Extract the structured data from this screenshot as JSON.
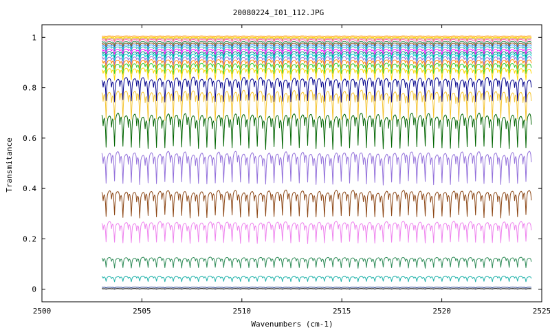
{
  "chart_data": {
    "type": "line",
    "title": "20080224_I01_112.JPG",
    "xlabel": "Wavenumbers (cm-1)",
    "ylabel": "Transmitance",
    "xlim": [
      2500,
      2525
    ],
    "ylim": [
      -0.05,
      1.05
    ],
    "x_ticks": [
      2500,
      2505,
      2510,
      2515,
      2520,
      2525
    ],
    "y_ticks": [
      0,
      0.2,
      0.4,
      0.6,
      0.8,
      1
    ],
    "y_tick_labels": [
      "0",
      "0.2",
      "0.4",
      "0.6",
      "0.8",
      "1"
    ],
    "x_data_range": [
      2503.0,
      2524.5
    ],
    "grid": false,
    "legend": "none",
    "line_spacing_cm1": 0.42,
    "series": [
      {
        "color": "#ff8c00",
        "baseline": 1.005,
        "depth": 0.004
      },
      {
        "color": "#ffd700",
        "baseline": 1.0,
        "depth": 0.006
      },
      {
        "color": "#cd853f",
        "baseline": 0.995,
        "depth": 0.008
      },
      {
        "color": "#ff69b4",
        "baseline": 0.99,
        "depth": 0.01
      },
      {
        "color": "#2e8b57",
        "baseline": 0.982,
        "depth": 0.012
      },
      {
        "color": "#8b4513",
        "baseline": 0.975,
        "depth": 0.014
      },
      {
        "color": "#1e90ff",
        "baseline": 0.968,
        "depth": 0.016
      },
      {
        "color": "#20b2aa",
        "baseline": 0.96,
        "depth": 0.018
      },
      {
        "color": "#ff00ff",
        "baseline": 0.95,
        "depth": 0.02
      },
      {
        "color": "#008b8b",
        "baseline": 0.94,
        "depth": 0.024
      },
      {
        "color": "#00ced1",
        "baseline": 0.93,
        "depth": 0.028
      },
      {
        "color": "#9370db",
        "baseline": 0.918,
        "depth": 0.032
      },
      {
        "color": "#ff8c00",
        "baseline": 0.905,
        "depth": 0.036
      },
      {
        "color": "#32cd32",
        "baseline": 0.89,
        "depth": 0.04
      },
      {
        "color": "#ffd700",
        "baseline": 0.87,
        "depth": 0.045
      },
      {
        "color": "#00008b",
        "baseline": 0.825,
        "depth": 0.09
      },
      {
        "color": "#f4c430",
        "baseline": 0.77,
        "depth": 0.11
      },
      {
        "color": "#006400",
        "baseline": 0.675,
        "depth": 0.13
      },
      {
        "color": "#9370db",
        "baseline": 0.525,
        "depth": 0.12
      },
      {
        "color": "#8b4513",
        "baseline": 0.375,
        "depth": 0.1
      },
      {
        "color": "#ee82ee",
        "baseline": 0.255,
        "depth": 0.08
      },
      {
        "color": "#2e8b57",
        "baseline": 0.12,
        "depth": 0.04
      },
      {
        "color": "#20b2aa",
        "baseline": 0.048,
        "depth": 0.02
      },
      {
        "color": "#1e3a8a",
        "baseline": 0.008,
        "depth": 0.004
      },
      {
        "color": "#000000",
        "baseline": 0.002,
        "depth": 0.002
      }
    ]
  }
}
